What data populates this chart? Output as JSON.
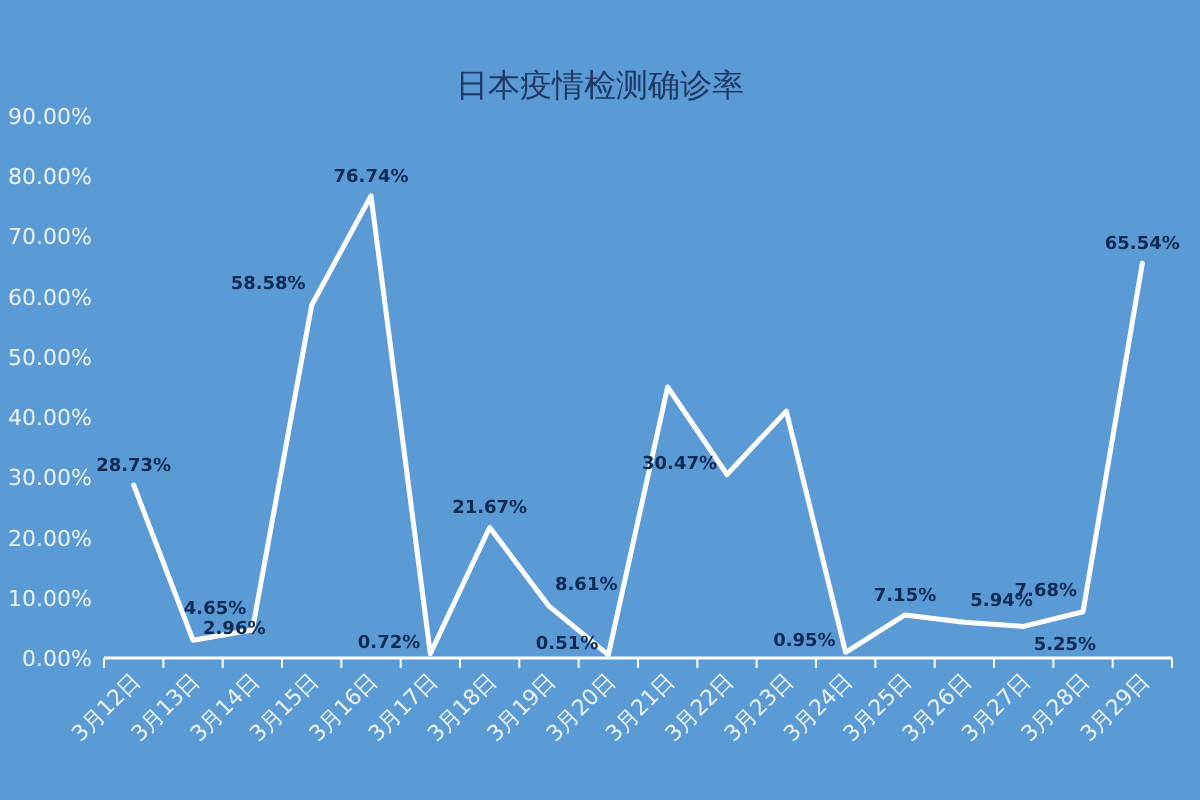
{
  "chart_data": {
    "type": "line",
    "title": "日本疫情检测确诊率",
    "categories": [
      "3月12日",
      "3月13日",
      "3月14日",
      "3月15日",
      "3月16日",
      "3月17日",
      "3月18日",
      "3月19日",
      "3月20日",
      "3月21日",
      "3月22日",
      "3月23日",
      "3月24日",
      "3月25日",
      "3月26日",
      "3月27日",
      "3月28日",
      "3月29日"
    ],
    "series": [
      {
        "color": "#ffffff",
        "values": [
          28.73,
          2.96,
          4.65,
          58.58,
          76.74,
          0.72,
          21.67,
          8.61,
          0.51,
          45,
          30.47,
          41,
          0.95,
          7.15,
          5.94,
          5.25,
          7.68,
          65.54
        ],
        "value_labels": [
          "28.73%",
          "2.96%",
          "4.65%",
          "58.58%",
          "76.74%",
          "0.72%",
          "21.67%",
          "8.61%",
          "0.51%",
          null,
          "30.47%",
          null,
          "0.95%",
          "7.15%",
          "5.94%",
          "5.25%",
          "7.68%",
          "65.54%"
        ]
      }
    ],
    "ylim": [
      0,
      90
    ],
    "yticks": [
      {
        "value": 0,
        "label": "0.00%"
      },
      {
        "value": 10,
        "label": "10.00%"
      },
      {
        "value": 20,
        "label": "20.00%"
      },
      {
        "value": 30,
        "label": "30.00%"
      },
      {
        "value": 40,
        "label": "40.00%"
      },
      {
        "value": 50,
        "label": "50.00%"
      },
      {
        "value": 60,
        "label": "60.00%"
      },
      {
        "value": 70,
        "label": "70.00%"
      },
      {
        "value": 80,
        "label": "80.00%"
      },
      {
        "value": 90,
        "label": "90.00%"
      }
    ],
    "grid": false,
    "marker": "none",
    "line_style": "solid"
  }
}
